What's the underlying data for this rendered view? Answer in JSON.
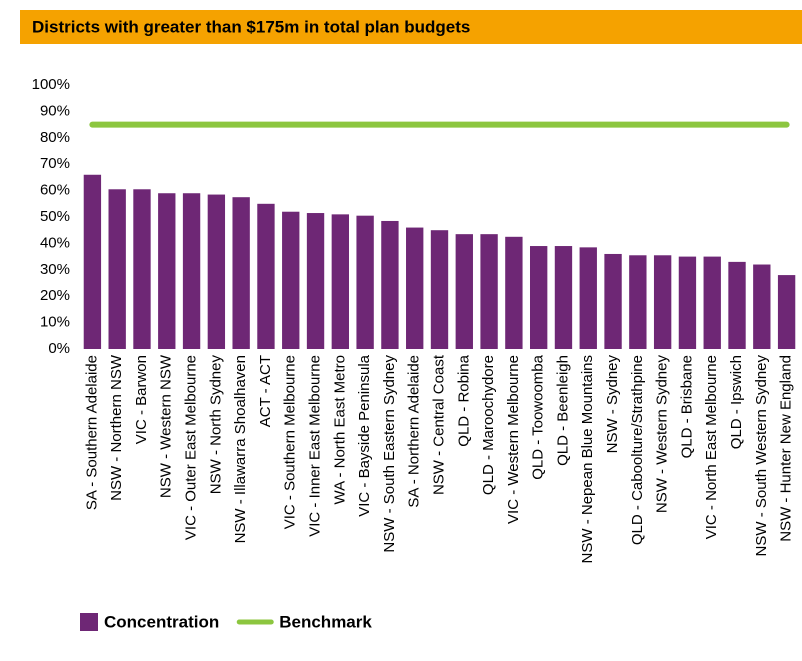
{
  "chart_data": {
    "type": "bar",
    "title": "Districts with greater than $175m in total plan budgets",
    "categories": [
      "SA - Southern Adelaide",
      "NSW - Northern NSW",
      "VIC - Barwon",
      "NSW - Western NSW",
      "VIC - Outer East Melbourne",
      "NSW - North Sydney",
      "NSW - Illawarra Shoalhaven",
      "ACT - ACT",
      "VIC - Southern Melbourne",
      "VIC - Inner East Melbourne",
      "WA - North East Metro",
      "VIC - Bayside Peninsula",
      "NSW - South Eastern Sydney",
      "SA - Northern Adelaide",
      "NSW - Central Coast",
      "QLD - Robina",
      "QLD - Maroochydore",
      "VIC - Western Melbourne",
      "QLD - Toowoomba",
      "QLD - Beenleigh",
      "NSW - Nepean Blue Mountains",
      "NSW - Sydney",
      "QLD - Caboolture/Strathpine",
      "NSW - Western Sydney",
      "QLD - Brisbane",
      "VIC - North East Melbourne",
      "QLD - Ipswich",
      "NSW - South Western Sydney",
      "NSW - Hunter New England"
    ],
    "series": [
      {
        "name": "Concentration",
        "type": "bar",
        "color": "#6e2775",
        "values": [
          66,
          60.5,
          60.5,
          59,
          59,
          58.5,
          57.5,
          55,
          52,
          51.5,
          51,
          50.5,
          48.5,
          46,
          45,
          43.5,
          43.5,
          42.5,
          39,
          39,
          38.5,
          36,
          35.5,
          35.5,
          35,
          35,
          33,
          32,
          28
        ]
      },
      {
        "name": "Benchmark",
        "type": "line",
        "color": "#8cc63f",
        "values": [
          85,
          85,
          85,
          85,
          85,
          85,
          85,
          85,
          85,
          85,
          85,
          85,
          85,
          85,
          85,
          85,
          85,
          85,
          85,
          85,
          85,
          85,
          85,
          85,
          85,
          85,
          85,
          85,
          85
        ]
      }
    ],
    "ylim": [
      0,
      100
    ],
    "yticks": [
      {
        "value": 0,
        "label": "0%"
      },
      {
        "value": 10,
        "label": "10%"
      },
      {
        "value": 20,
        "label": "20%"
      },
      {
        "value": 30,
        "label": "30%"
      },
      {
        "value": 40,
        "label": "40%"
      },
      {
        "value": 50,
        "label": "50%"
      },
      {
        "value": 60,
        "label": "60%"
      },
      {
        "value": 70,
        "label": "70%"
      },
      {
        "value": 80,
        "label": "80%"
      },
      {
        "value": 90,
        "label": "90%"
      },
      {
        "value": 100,
        "label": "100%"
      }
    ],
    "grid": false,
    "legend": "bottom"
  }
}
